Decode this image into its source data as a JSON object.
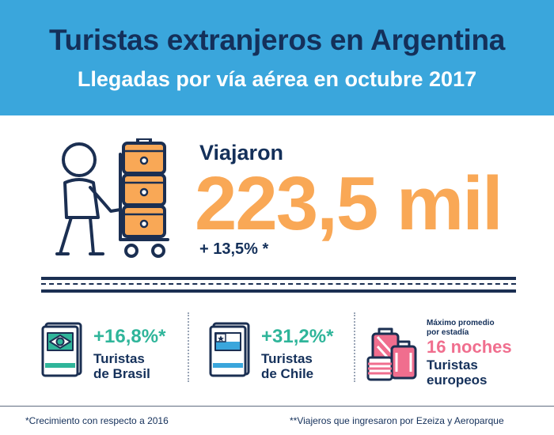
{
  "header": {
    "title": "Turistas extranjeros en Argentina",
    "subtitle": "Llegadas por vía aérea en octubre 2017"
  },
  "hero": {
    "label": "Viajaron",
    "value": "223,5 mil",
    "growth": "+ 13,5% *",
    "icon": "traveler-luggage-cart-icon"
  },
  "stats": [
    {
      "id": "brasil",
      "pct": "+16,8%*",
      "label_line1": "Turistas",
      "label_line2": "de Brasil",
      "icon": "passport-brasil-icon"
    },
    {
      "id": "chile",
      "pct": "+31,2%*",
      "label_line1": "Turistas",
      "label_line2": "de Chile",
      "icon": "passport-chile-icon"
    },
    {
      "id": "europa",
      "caption_line1": "Máximo promedio",
      "caption_line2": "por estadía",
      "value": "16 noches",
      "label_line1": "Turistas",
      "label_line2": "europeos",
      "icon": "suitcases-icon"
    }
  ],
  "colors": {
    "header_bg": "#3aa6dc",
    "navy": "#14305a",
    "orange": "#f9a856",
    "green": "#2fb59a",
    "pink": "#f06e8e"
  },
  "footer": {
    "note_left": "*Crecimiento con respecto a  2016",
    "note_right": "**Viajeros que ingresaron por Ezeiza y Aeroparque"
  }
}
